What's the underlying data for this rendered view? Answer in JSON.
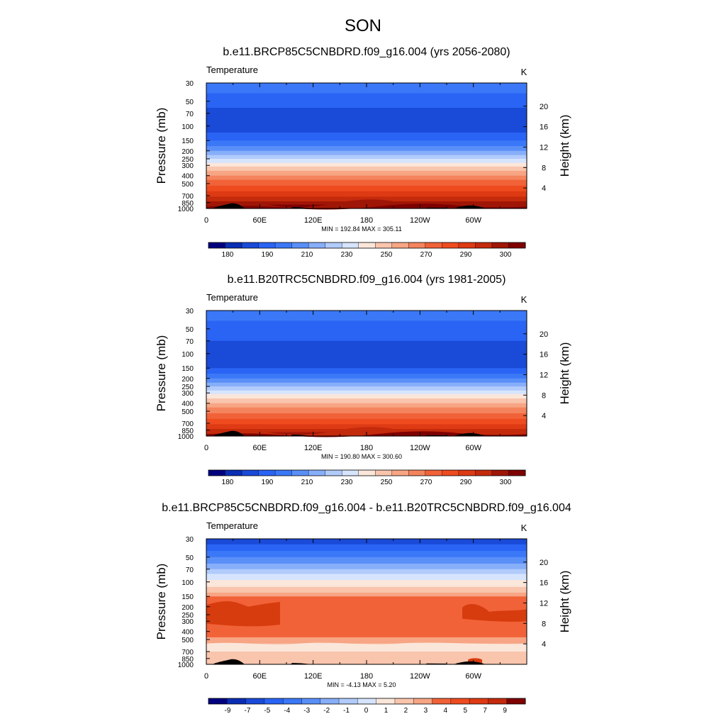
{
  "figure": {
    "main_title": "SON"
  },
  "chart_data": [
    {
      "type": "heatmap",
      "title": "b.e11.BRCP85C5CNBDRD.f09_g16.004 (yrs 2056-2080)",
      "field": "Temperature",
      "units": "K",
      "ylabel": "Pressure (mb)",
      "y2label": "Height (km)",
      "pressure_ticks": [
        "30",
        "50",
        "70",
        "100",
        "150",
        "200",
        "250",
        "300",
        "400",
        "500",
        "700",
        "850",
        "1000"
      ],
      "height_ticks": [
        "20",
        "16",
        "12",
        "8",
        "4"
      ],
      "lon_ticks": [
        "0",
        "60E",
        "120E",
        "180",
        "120W",
        "60W"
      ],
      "stats": "MIN = 192.84  MAX = 305.11",
      "min": 192.84,
      "max": 305.11,
      "colorbar_labels": [
        "180",
        "190",
        "210",
        "230",
        "250",
        "270",
        "290",
        "300"
      ],
      "profile": [
        {
          "p": 30,
          "level": 4
        },
        {
          "p": 40,
          "level": 3
        },
        {
          "p": 50,
          "level": 3
        },
        {
          "p": 60,
          "level": 2
        },
        {
          "p": 70,
          "level": 2
        },
        {
          "p": 85,
          "level": 2
        },
        {
          "p": 100,
          "level": 2
        },
        {
          "p": 120,
          "level": 3
        },
        {
          "p": 150,
          "level": 4
        },
        {
          "p": 175,
          "level": 5
        },
        {
          "p": 200,
          "level": 6
        },
        {
          "p": 225,
          "level": 7
        },
        {
          "p": 250,
          "level": 8
        },
        {
          "p": 280,
          "level": 9
        },
        {
          "p": 310,
          "level": 10
        },
        {
          "p": 350,
          "level": 11
        },
        {
          "p": 400,
          "level": 12
        },
        {
          "p": 450,
          "level": 13
        },
        {
          "p": 530,
          "level": 14
        },
        {
          "p": 620,
          "level": 15
        },
        {
          "p": 720,
          "level": 16
        },
        {
          "p": 820,
          "level": 17
        },
        {
          "p": 900,
          "level": 18
        },
        {
          "p": 1000,
          "level": 18
        }
      ]
    },
    {
      "type": "heatmap",
      "title": "b.e11.B20TRC5CNBDRD.f09_g16.004 (yrs 1981-2005)",
      "field": "Temperature",
      "units": "K",
      "ylabel": "Pressure (mb)",
      "y2label": "Height (km)",
      "pressure_ticks": [
        "30",
        "50",
        "70",
        "100",
        "150",
        "200",
        "250",
        "300",
        "400",
        "500",
        "700",
        "850",
        "1000"
      ],
      "height_ticks": [
        "20",
        "16",
        "12",
        "8",
        "4"
      ],
      "lon_ticks": [
        "0",
        "60E",
        "120E",
        "180",
        "120W",
        "60W"
      ],
      "stats": "MIN = 190.80  MAX = 300.60",
      "min": 190.8,
      "max": 300.6,
      "colorbar_labels": [
        "180",
        "190",
        "210",
        "230",
        "250",
        "270",
        "290",
        "300"
      ],
      "profile": [
        {
          "p": 30,
          "level": 4
        },
        {
          "p": 40,
          "level": 3
        },
        {
          "p": 50,
          "level": 3
        },
        {
          "p": 60,
          "level": 3
        },
        {
          "p": 70,
          "level": 2
        },
        {
          "p": 85,
          "level": 2
        },
        {
          "p": 100,
          "level": 2
        },
        {
          "p": 120,
          "level": 2
        },
        {
          "p": 150,
          "level": 3
        },
        {
          "p": 175,
          "level": 4
        },
        {
          "p": 200,
          "level": 5
        },
        {
          "p": 225,
          "level": 6
        },
        {
          "p": 250,
          "level": 7
        },
        {
          "p": 280,
          "level": 8
        },
        {
          "p": 310,
          "level": 9
        },
        {
          "p": 350,
          "level": 10
        },
        {
          "p": 400,
          "level": 11
        },
        {
          "p": 450,
          "level": 12
        },
        {
          "p": 530,
          "level": 13
        },
        {
          "p": 620,
          "level": 14
        },
        {
          "p": 720,
          "level": 15
        },
        {
          "p": 820,
          "level": 16
        },
        {
          "p": 900,
          "level": 17
        },
        {
          "p": 1000,
          "level": 17
        }
      ]
    },
    {
      "type": "heatmap",
      "title": "b.e11.BRCP85C5CNBDRD.f09_g16.004 - b.e11.B20TRC5CNBDRD.f09_g16.004",
      "field": "Temperature",
      "units": "K",
      "ylabel": "Pressure (mb)",
      "y2label": "Height (km)",
      "pressure_ticks": [
        "30",
        "50",
        "70",
        "100",
        "150",
        "200",
        "250",
        "300",
        "400",
        "500",
        "700",
        "850",
        "1000"
      ],
      "height_ticks": [
        "20",
        "16",
        "12",
        "8",
        "4"
      ],
      "lon_ticks": [
        "0",
        "60E",
        "120E",
        "180",
        "120W",
        "60W"
      ],
      "stats": "MIN =  -4.13  MAX =   5.20",
      "min": -4.13,
      "max": 5.2,
      "colorbar_labels": [
        "-9",
        "-7",
        "-5",
        "-4",
        "-3",
        "-2",
        "-1",
        "0",
        "1",
        "2",
        "3",
        "4",
        "5",
        "7",
        "9"
      ],
      "profile": [
        {
          "p": 30,
          "level": 2
        },
        {
          "p": 35,
          "level": 3
        },
        {
          "p": 42,
          "level": 4
        },
        {
          "p": 50,
          "level": 5
        },
        {
          "p": 60,
          "level": 6
        },
        {
          "p": 70,
          "level": 7
        },
        {
          "p": 80,
          "level": 8
        },
        {
          "p": 95,
          "level": 9
        },
        {
          "p": 115,
          "level": 10
        },
        {
          "p": 135,
          "level": 11
        },
        {
          "p": 150,
          "level": 12
        },
        {
          "p": 200,
          "level": 12
        },
        {
          "p": 300,
          "level": 12
        },
        {
          "p": 400,
          "level": 12
        },
        {
          "p": 470,
          "level": 11
        },
        {
          "p": 560,
          "level": 10
        },
        {
          "p": 700,
          "level": 10
        },
        {
          "p": 850,
          "level": 10
        },
        {
          "p": 1000,
          "level": 10
        }
      ]
    }
  ],
  "colors": {
    "absolute_scale": [
      "#00007f",
      "#0a2db4",
      "#1a4ad8",
      "#2a64f5",
      "#3b78f7",
      "#5a8ff8",
      "#87aef9",
      "#b1cbfb",
      "#d6e4fd",
      "#fbe6da",
      "#f9c5ad",
      "#f7a584",
      "#f4845d",
      "#f16238",
      "#ee4b1f",
      "#de3a13",
      "#c42a0c",
      "#a01606",
      "#7f0000"
    ],
    "difference_scale": [
      "#00007f",
      "#0a2db4",
      "#1a4ad8",
      "#2a64f5",
      "#3b78f7",
      "#5a8ff8",
      "#87aef9",
      "#b1cbfb",
      "#d6e4fd",
      "#fbe6da",
      "#f9c5ad",
      "#f7a584",
      "#f16238",
      "#ee4b1f",
      "#de3a13",
      "#c42a0c",
      "#7f0000"
    ],
    "diff_warm_band": "#d73c0e",
    "terrain": "#000000"
  }
}
